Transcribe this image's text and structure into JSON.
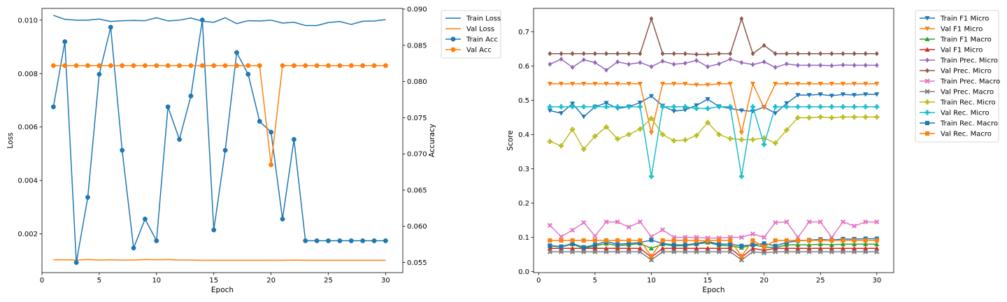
{
  "chart_data": [
    {
      "type": "line",
      "xlabel": "Epoch",
      "ylabel": "Loss",
      "y2label": "Accuracy",
      "xlim": [
        0,
        31.5
      ],
      "ylim": [
        0.00055,
        0.01044
      ],
      "y2lim": [
        0.0536,
        0.0901
      ],
      "xticks": [
        0,
        5,
        10,
        15,
        20,
        25,
        30
      ],
      "yticks": [
        0.002,
        0.004,
        0.006,
        0.008,
        0.01
      ],
      "yticklabels": [
        "0.002",
        "0.004",
        "0.006",
        "0.008",
        "0.010"
      ],
      "y2ticks": [
        0.055,
        0.06,
        0.065,
        0.07,
        0.075,
        0.08,
        0.085,
        0.09
      ],
      "y2ticklabels": [
        "0.055",
        "0.060",
        "0.065",
        "0.070",
        "0.075",
        "0.080",
        "0.085",
        "0.090"
      ],
      "legend_position": "outside-top-right",
      "x": [
        1,
        2,
        3,
        4,
        5,
        6,
        7,
        8,
        9,
        10,
        11,
        12,
        13,
        14,
        15,
        16,
        17,
        18,
        19,
        20,
        21,
        22,
        23,
        24,
        25,
        26,
        27,
        28,
        29,
        30
      ],
      "series": [
        {
          "name": "Train Loss",
          "axis": "left",
          "color": "#1f77b4",
          "marker": "none",
          "values": [
            0.01018,
            0.01003,
            0.01,
            0.01,
            0.01004,
            0.00995,
            0.00998,
            0.00999,
            0.00998,
            0.01009,
            0.00997,
            0.01,
            0.01008,
            0.00996,
            0.00992,
            0.01009,
            0.00987,
            0.00998,
            0.00997,
            0.01,
            0.00989,
            0.00992,
            0.0098,
            0.0098,
            0.00991,
            0.00995,
            0.00984,
            0.00996,
            0.00997,
            0.01002
          ]
        },
        {
          "name": "Val Loss",
          "axis": "left",
          "color": "#ff7f0e",
          "marker": "none",
          "values": [
            0.00103,
            0.00103,
            0.00102,
            0.00104,
            0.00102,
            0.00103,
            0.00102,
            0.00102,
            0.00104,
            0.00103,
            0.00104,
            0.00102,
            0.00102,
            0.00101,
            0.00101,
            0.00101,
            0.00101,
            0.00101,
            0.00101,
            0.00101,
            0.00101,
            0.00102,
            0.00101,
            0.00101,
            0.00101,
            0.00101,
            0.00101,
            0.00101,
            0.00101,
            0.00101
          ]
        },
        {
          "name": "Train Acc",
          "axis": "right",
          "color": "#1f77b4",
          "marker": "circle",
          "values": [
            0.0765,
            0.0855,
            0.055,
            0.064,
            0.081,
            0.0875,
            0.0705,
            0.057,
            0.061,
            0.058,
            0.0765,
            0.072,
            0.078,
            0.0885,
            0.0595,
            0.0705,
            0.084,
            0.081,
            0.0745,
            0.073,
            0.061,
            0.072,
            0.058,
            0.058,
            0.058,
            0.058,
            0.058,
            0.058,
            0.058,
            0.058
          ]
        },
        {
          "name": "Val Acc",
          "axis": "right",
          "color": "#ff7f0e",
          "marker": "circle",
          "values": [
            0.0822,
            0.0822,
            0.0822,
            0.0822,
            0.0822,
            0.0822,
            0.0822,
            0.0822,
            0.0822,
            0.0822,
            0.0822,
            0.0822,
            0.0822,
            0.0822,
            0.0822,
            0.0822,
            0.0822,
            0.0822,
            0.0822,
            0.0685,
            0.0822,
            0.0822,
            0.0822,
            0.0822,
            0.0822,
            0.0822,
            0.0822,
            0.0822,
            0.0822,
            0.0822
          ]
        }
      ]
    },
    {
      "type": "line",
      "xlabel": "Epoch",
      "ylabel": "Score",
      "xlim": [
        -0.45,
        31.5
      ],
      "ylim": [
        -0.003,
        0.768
      ],
      "xticks": [
        0,
        5,
        10,
        15,
        20,
        25,
        30
      ],
      "yticks": [
        0.0,
        0.1,
        0.2,
        0.3,
        0.4,
        0.5,
        0.6,
        0.7
      ],
      "yticklabels": [
        "0.0",
        "0.1",
        "0.2",
        "0.3",
        "0.4",
        "0.5",
        "0.6",
        "0.7"
      ],
      "legend_position": "outside-top-right",
      "x": [
        1,
        2,
        3,
        4,
        5,
        6,
        7,
        8,
        9,
        10,
        11,
        12,
        13,
        14,
        15,
        16,
        17,
        18,
        19,
        20,
        21,
        22,
        23,
        24,
        25,
        26,
        27,
        28,
        29,
        30
      ],
      "series": [
        {
          "name": "Train F1 Micro",
          "color": "#1f77b4",
          "marker": "triangle_down",
          "values": [
            0.47,
            0.462,
            0.49,
            0.452,
            0.481,
            0.492,
            0.476,
            0.481,
            0.493,
            0.512,
            0.484,
            0.468,
            0.472,
            0.485,
            0.503,
            0.482,
            0.476,
            0.47,
            0.468,
            0.48,
            0.462,
            0.491,
            0.515,
            0.515,
            0.517,
            0.513,
            0.517,
            0.515,
            0.517,
            0.517
          ]
        },
        {
          "name": "Val F1 Micro",
          "color": "#ff7f0e",
          "marker": "triangle_down",
          "values": [
            0.548,
            0.548,
            0.548,
            0.548,
            0.548,
            0.548,
            0.548,
            0.548,
            0.548,
            0.405,
            0.548,
            0.548,
            0.548,
            0.545,
            0.545,
            0.548,
            0.548,
            0.405,
            0.548,
            0.478,
            0.548,
            0.548,
            0.548,
            0.548,
            0.548,
            0.548,
            0.548,
            0.548,
            0.548,
            0.548
          ]
        },
        {
          "name": "Train F1 Macro",
          "color": "#2ca02c",
          "marker": "triangle_up",
          "values": [
            0.075,
            0.072,
            0.08,
            0.068,
            0.075,
            0.082,
            0.076,
            0.078,
            0.082,
            0.068,
            0.08,
            0.075,
            0.076,
            0.08,
            0.085,
            0.077,
            0.075,
            0.07,
            0.078,
            0.072,
            0.07,
            0.078,
            0.078,
            0.078,
            0.08,
            0.078,
            0.08,
            0.08,
            0.08,
            0.08
          ]
        },
        {
          "name": "Val F1 Micro",
          "color": "#d62728",
          "marker": "triangle_up",
          "values": [
            0.068,
            0.068,
            0.068,
            0.068,
            0.068,
            0.068,
            0.068,
            0.068,
            0.068,
            0.042,
            0.068,
            0.068,
            0.068,
            0.068,
            0.068,
            0.068,
            0.068,
            0.042,
            0.068,
            0.062,
            0.068,
            0.068,
            0.068,
            0.068,
            0.068,
            0.068,
            0.068,
            0.068,
            0.068,
            0.068
          ]
        },
        {
          "name": "Train Prec. Micro",
          "color": "#9467bd",
          "marker": "diamond",
          "values": [
            0.605,
            0.62,
            0.596,
            0.618,
            0.61,
            0.588,
            0.612,
            0.605,
            0.61,
            0.598,
            0.614,
            0.605,
            0.608,
            0.616,
            0.598,
            0.606,
            0.62,
            0.61,
            0.604,
            0.612,
            0.596,
            0.606,
            0.602,
            0.602,
            0.602,
            0.601,
            0.603,
            0.602,
            0.602,
            0.602
          ]
        },
        {
          "name": "Val Prec. Micro",
          "color": "#8c564b",
          "marker": "diamond",
          "values": [
            0.636,
            0.636,
            0.636,
            0.636,
            0.636,
            0.636,
            0.636,
            0.636,
            0.636,
            0.738,
            0.636,
            0.636,
            0.636,
            0.634,
            0.634,
            0.636,
            0.636,
            0.738,
            0.636,
            0.66,
            0.636,
            0.636,
            0.636,
            0.636,
            0.636,
            0.636,
            0.636,
            0.636,
            0.636,
            0.636
          ]
        },
        {
          "name": "Train Prec. Macro",
          "color": "#e377c2",
          "marker": "x",
          "values": [
            0.135,
            0.102,
            0.121,
            0.143,
            0.104,
            0.145,
            0.145,
            0.13,
            0.145,
            0.102,
            0.122,
            0.1,
            0.1,
            0.1,
            0.098,
            0.098,
            0.1,
            0.1,
            0.11,
            0.1,
            0.143,
            0.145,
            0.1,
            0.145,
            0.145,
            0.1,
            0.145,
            0.133,
            0.145,
            0.145
          ]
        },
        {
          "name": "Val Prec. Macro",
          "color": "#7f7f7f",
          "marker": "x",
          "values": [
            0.058,
            0.058,
            0.058,
            0.058,
            0.058,
            0.058,
            0.058,
            0.058,
            0.058,
            0.034,
            0.058,
            0.058,
            0.058,
            0.058,
            0.058,
            0.058,
            0.058,
            0.034,
            0.058,
            0.055,
            0.058,
            0.058,
            0.058,
            0.058,
            0.058,
            0.058,
            0.058,
            0.058,
            0.058,
            0.058
          ]
        },
        {
          "name": "Train Rec. Micro",
          "color": "#bcbd22",
          "marker": "plus",
          "values": [
            0.38,
            0.367,
            0.415,
            0.357,
            0.395,
            0.422,
            0.387,
            0.4,
            0.416,
            0.447,
            0.4,
            0.382,
            0.384,
            0.397,
            0.435,
            0.4,
            0.388,
            0.385,
            0.385,
            0.39,
            0.375,
            0.413,
            0.449,
            0.449,
            0.451,
            0.449,
            0.451,
            0.451,
            0.451,
            0.451
          ]
        },
        {
          "name": "Val Rec. Micro",
          "color": "#17becf",
          "marker": "plus",
          "values": [
            0.481,
            0.481,
            0.481,
            0.481,
            0.481,
            0.481,
            0.481,
            0.481,
            0.481,
            0.278,
            0.481,
            0.481,
            0.481,
            0.476,
            0.476,
            0.481,
            0.481,
            0.278,
            0.481,
            0.371,
            0.481,
            0.481,
            0.481,
            0.481,
            0.481,
            0.481,
            0.481,
            0.481,
            0.481,
            0.481
          ]
        },
        {
          "name": "Train Rec. Macro",
          "color": "#1f77b4",
          "marker": "square",
          "values": [
            0.076,
            0.073,
            0.082,
            0.071,
            0.078,
            0.088,
            0.08,
            0.082,
            0.085,
            0.092,
            0.082,
            0.078,
            0.078,
            0.082,
            0.088,
            0.08,
            0.08,
            0.075,
            0.078,
            0.082,
            0.075,
            0.085,
            0.09,
            0.092,
            0.094,
            0.092,
            0.095,
            0.095,
            0.096,
            0.096
          ]
        },
        {
          "name": "Val Rec. Macro",
          "color": "#ff7f0e",
          "marker": "square",
          "values": [
            0.091,
            0.091,
            0.091,
            0.091,
            0.091,
            0.091,
            0.091,
            0.091,
            0.091,
            0.045,
            0.091,
            0.091,
            0.091,
            0.09,
            0.09,
            0.091,
            0.091,
            0.045,
            0.091,
            0.072,
            0.091,
            0.091,
            0.091,
            0.091,
            0.091,
            0.091,
            0.091,
            0.091,
            0.091,
            0.091
          ]
        }
      ]
    }
  ]
}
